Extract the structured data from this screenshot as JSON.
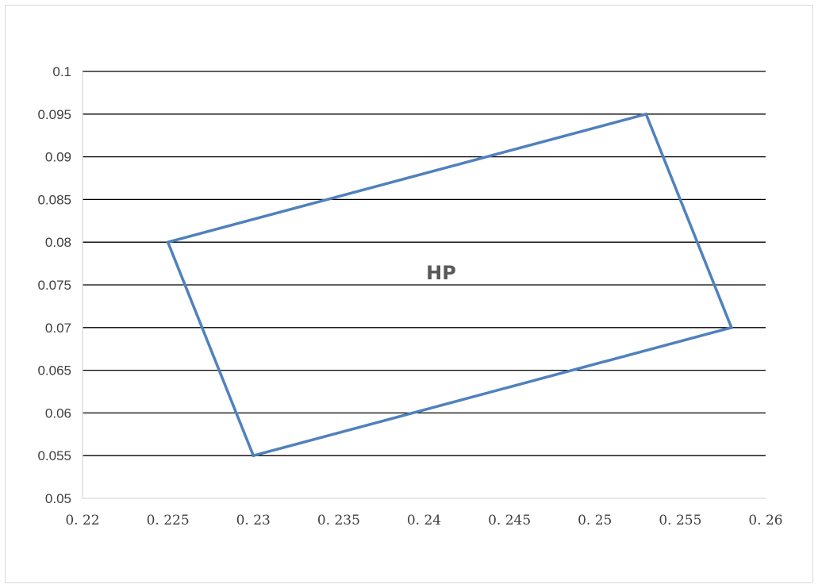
{
  "chart_data": {
    "type": "scatter",
    "title": "",
    "xlabel": "",
    "ylabel": "",
    "xlim": [
      0.22,
      0.26
    ],
    "ylim": [
      0.05,
      0.1
    ],
    "grid": "horizontal",
    "legend": "none",
    "x_tick_labels": [
      "0. 22",
      "0. 225",
      "0. 23",
      "0. 235",
      "0. 24",
      "0. 245",
      "0. 25",
      "0. 255",
      "0. 26"
    ],
    "x_tick_values": [
      0.22,
      0.225,
      0.23,
      0.235,
      0.24,
      0.245,
      0.25,
      0.255,
      0.26
    ],
    "y_tick_labels": [
      "0.05",
      "0.055",
      "0.06",
      "0.065",
      "0.07",
      "0.075",
      "0.08",
      "0.085",
      "0.09",
      "0.095",
      "0.1"
    ],
    "y_tick_values": [
      0.05,
      0.055,
      0.06,
      0.065,
      0.07,
      0.075,
      0.08,
      0.085,
      0.09,
      0.095,
      0.1
    ],
    "series": [
      {
        "color": "#4f81bd",
        "points": [
          {
            "x": 0.225,
            "y": 0.08
          },
          {
            "x": 0.253,
            "y": 0.095
          },
          {
            "x": 0.258,
            "y": 0.07
          },
          {
            "x": 0.23,
            "y": 0.055
          },
          {
            "x": 0.225,
            "y": 0.08
          }
        ]
      }
    ],
    "annotations": [
      {
        "text": "HP",
        "x": 0.241,
        "y": 0.0765
      }
    ],
    "colors": {
      "grid": "#000000",
      "axis": "#d9d9d9",
      "tick_text": "#404040",
      "annotation": "#595959"
    }
  }
}
